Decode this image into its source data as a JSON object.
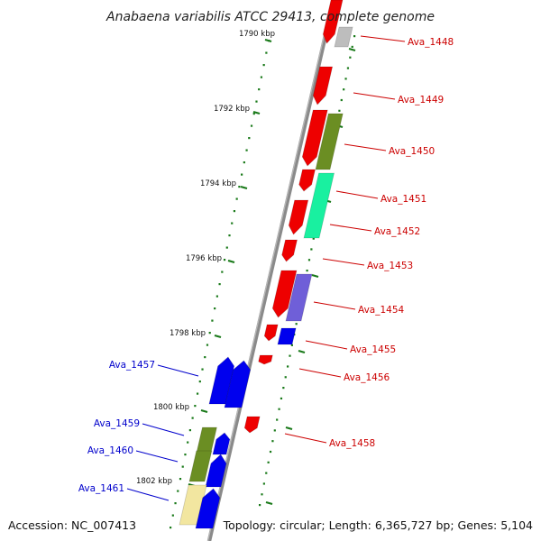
{
  "title": "Anabaena variabilis ATCC 29413, complete genome",
  "footer": {
    "accession": "Accession: NC_007413",
    "summary": "Topology: circular; Length: 6,365,727 bp; Genes: 5,104"
  },
  "colors": {
    "backbone": "#8a8a8a",
    "tick": "#1a7a1a",
    "label_forward": "#cc0000",
    "label_reverse": "#0000cc"
  },
  "ticks": [
    {
      "label": "1790 kbp"
    },
    {
      "label": "1792 kbp"
    },
    {
      "label": "1794 kbp"
    },
    {
      "label": "1796 kbp"
    },
    {
      "label": "1798 kbp"
    },
    {
      "label": "1800 kbp"
    },
    {
      "label": "1802 kbp"
    }
  ],
  "genes": [
    {
      "name": "Ava_1448",
      "strand": "forward"
    },
    {
      "name": "Ava_1449",
      "strand": "forward"
    },
    {
      "name": "Ava_1450",
      "strand": "forward"
    },
    {
      "name": "Ava_1451",
      "strand": "forward"
    },
    {
      "name": "Ava_1452",
      "strand": "forward"
    },
    {
      "name": "Ava_1453",
      "strand": "forward"
    },
    {
      "name": "Ava_1454",
      "strand": "forward"
    },
    {
      "name": "Ava_1455",
      "strand": "forward"
    },
    {
      "name": "Ava_1456",
      "strand": "forward"
    },
    {
      "name": "Ava_1457",
      "strand": "reverse"
    },
    {
      "name": "Ava_1458",
      "strand": "forward"
    },
    {
      "name": "Ava_1459",
      "strand": "reverse"
    },
    {
      "name": "Ava_1460",
      "strand": "reverse"
    },
    {
      "name": "Ava_1461",
      "strand": "reverse"
    }
  ]
}
